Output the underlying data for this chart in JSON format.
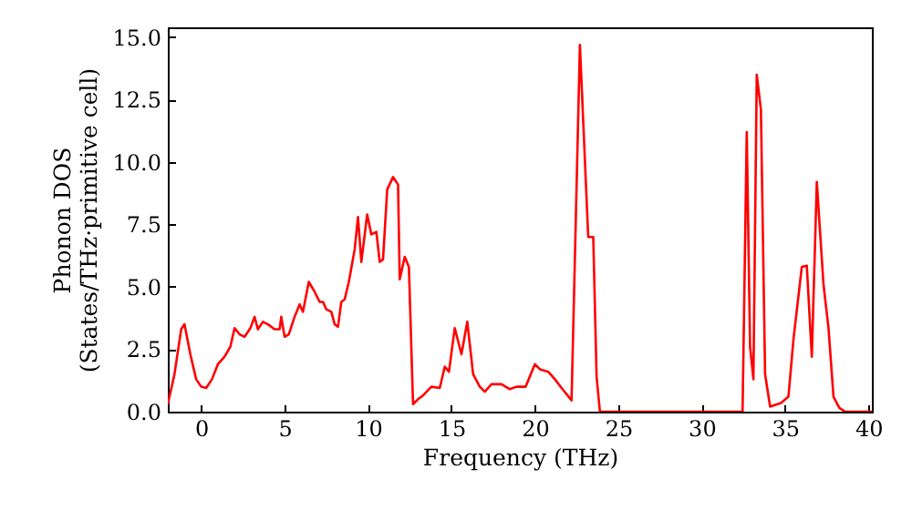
{
  "chart_data": {
    "type": "line",
    "xlabel": "Frequency (THz)",
    "ylabel": "Phonon DOS\n(States/THz·primitive cell)",
    "xlim": [
      -2,
      40.2
    ],
    "ylim": [
      0,
      15.4
    ],
    "xticks": [
      {
        "value": 0,
        "label": "0"
      },
      {
        "value": 5,
        "label": "5"
      },
      {
        "value": 10,
        "label": "10"
      },
      {
        "value": 15,
        "label": "15"
      },
      {
        "value": 20,
        "label": "20"
      },
      {
        "value": 25,
        "label": "25"
      },
      {
        "value": 30,
        "label": "30"
      },
      {
        "value": 35,
        "label": "35"
      },
      {
        "value": 40,
        "label": "40"
      }
    ],
    "yticks": [
      {
        "value": 0,
        "label": "0.0"
      },
      {
        "value": 2.5,
        "label": "2.5"
      },
      {
        "value": 5,
        "label": "5.0"
      },
      {
        "value": 7.5,
        "label": "7.5"
      },
      {
        "value": 10,
        "label": "10.0"
      },
      {
        "value": 12.5,
        "label": "12.5"
      },
      {
        "value": 15,
        "label": "15.0"
      }
    ],
    "grid": false,
    "marker": "none",
    "line_style": "solid",
    "series": [
      {
        "color": "#ff0000",
        "x": [
          -2,
          -1.6,
          -1.2,
          -1.0,
          -0.65,
          -0.3,
          0,
          0.3,
          0.65,
          1.0,
          1.4,
          1.75,
          2.0,
          2.3,
          2.6,
          2.95,
          3.2,
          3.4,
          3.7,
          4.0,
          4.4,
          4.7,
          4.8,
          5.0,
          5.25,
          5.6,
          5.9,
          6.1,
          6.45,
          6.8,
          7.1,
          7.3,
          7.5,
          7.8,
          8.0,
          8.2,
          8.4,
          8.6,
          8.85,
          9.2,
          9.4,
          9.6,
          9.95,
          10.2,
          10.5,
          10.7,
          10.9,
          11.15,
          11.5,
          11.8,
          11.9,
          12.2,
          12.45,
          12.7,
          13.0,
          13.3,
          13.8,
          14.3,
          14.6,
          14.85,
          15.2,
          15.6,
          15.95,
          16.3,
          16.7,
          17.0,
          17.4,
          18.0,
          18.5,
          18.9,
          19.45,
          20.0,
          20.3,
          20.8,
          21.2,
          21.6,
          22.2,
          22.7,
          23.2,
          23.5,
          23.7,
          23.9,
          32.45,
          32.7,
          32.9,
          33.1,
          33.3,
          33.55,
          33.8,
          34.1,
          34.75,
          35.2,
          35.5,
          36.0,
          36.3,
          36.6,
          36.9,
          37.3,
          37.6,
          37.9,
          38.25,
          38.6,
          40.2
        ],
        "values": [
          0.3,
          1.5,
          3.3,
          3.5,
          2.3,
          1.3,
          1.0,
          0.95,
          1.3,
          1.9,
          2.2,
          2.6,
          3.35,
          3.1,
          3.0,
          3.35,
          3.8,
          3.3,
          3.6,
          3.5,
          3.3,
          3.3,
          3.8,
          3.0,
          3.1,
          3.8,
          4.3,
          4.0,
          5.2,
          4.8,
          4.4,
          4.4,
          4.1,
          4.0,
          3.5,
          3.4,
          4.4,
          4.5,
          5.2,
          6.5,
          7.8,
          6.0,
          7.9,
          7.1,
          7.2,
          6.0,
          6.1,
          8.9,
          9.4,
          9.1,
          5.3,
          6.2,
          5.8,
          0.3,
          0.5,
          0.65,
          1.0,
          0.95,
          1.8,
          1.6,
          3.35,
          2.3,
          3.6,
          1.5,
          1.0,
          0.8,
          1.1,
          1.1,
          0.9,
          1.0,
          1.0,
          1.9,
          1.7,
          1.6,
          1.3,
          0.95,
          0.45,
          14.7,
          7.0,
          7.0,
          1.4,
          0,
          0,
          11.2,
          2.6,
          1.3,
          13.5,
          12.1,
          1.5,
          0.2,
          0.35,
          0.6,
          2.9,
          5.8,
          5.85,
          2.2,
          9.2,
          5.1,
          3.35,
          0.6,
          0.15,
          0,
          0
        ]
      }
    ]
  }
}
